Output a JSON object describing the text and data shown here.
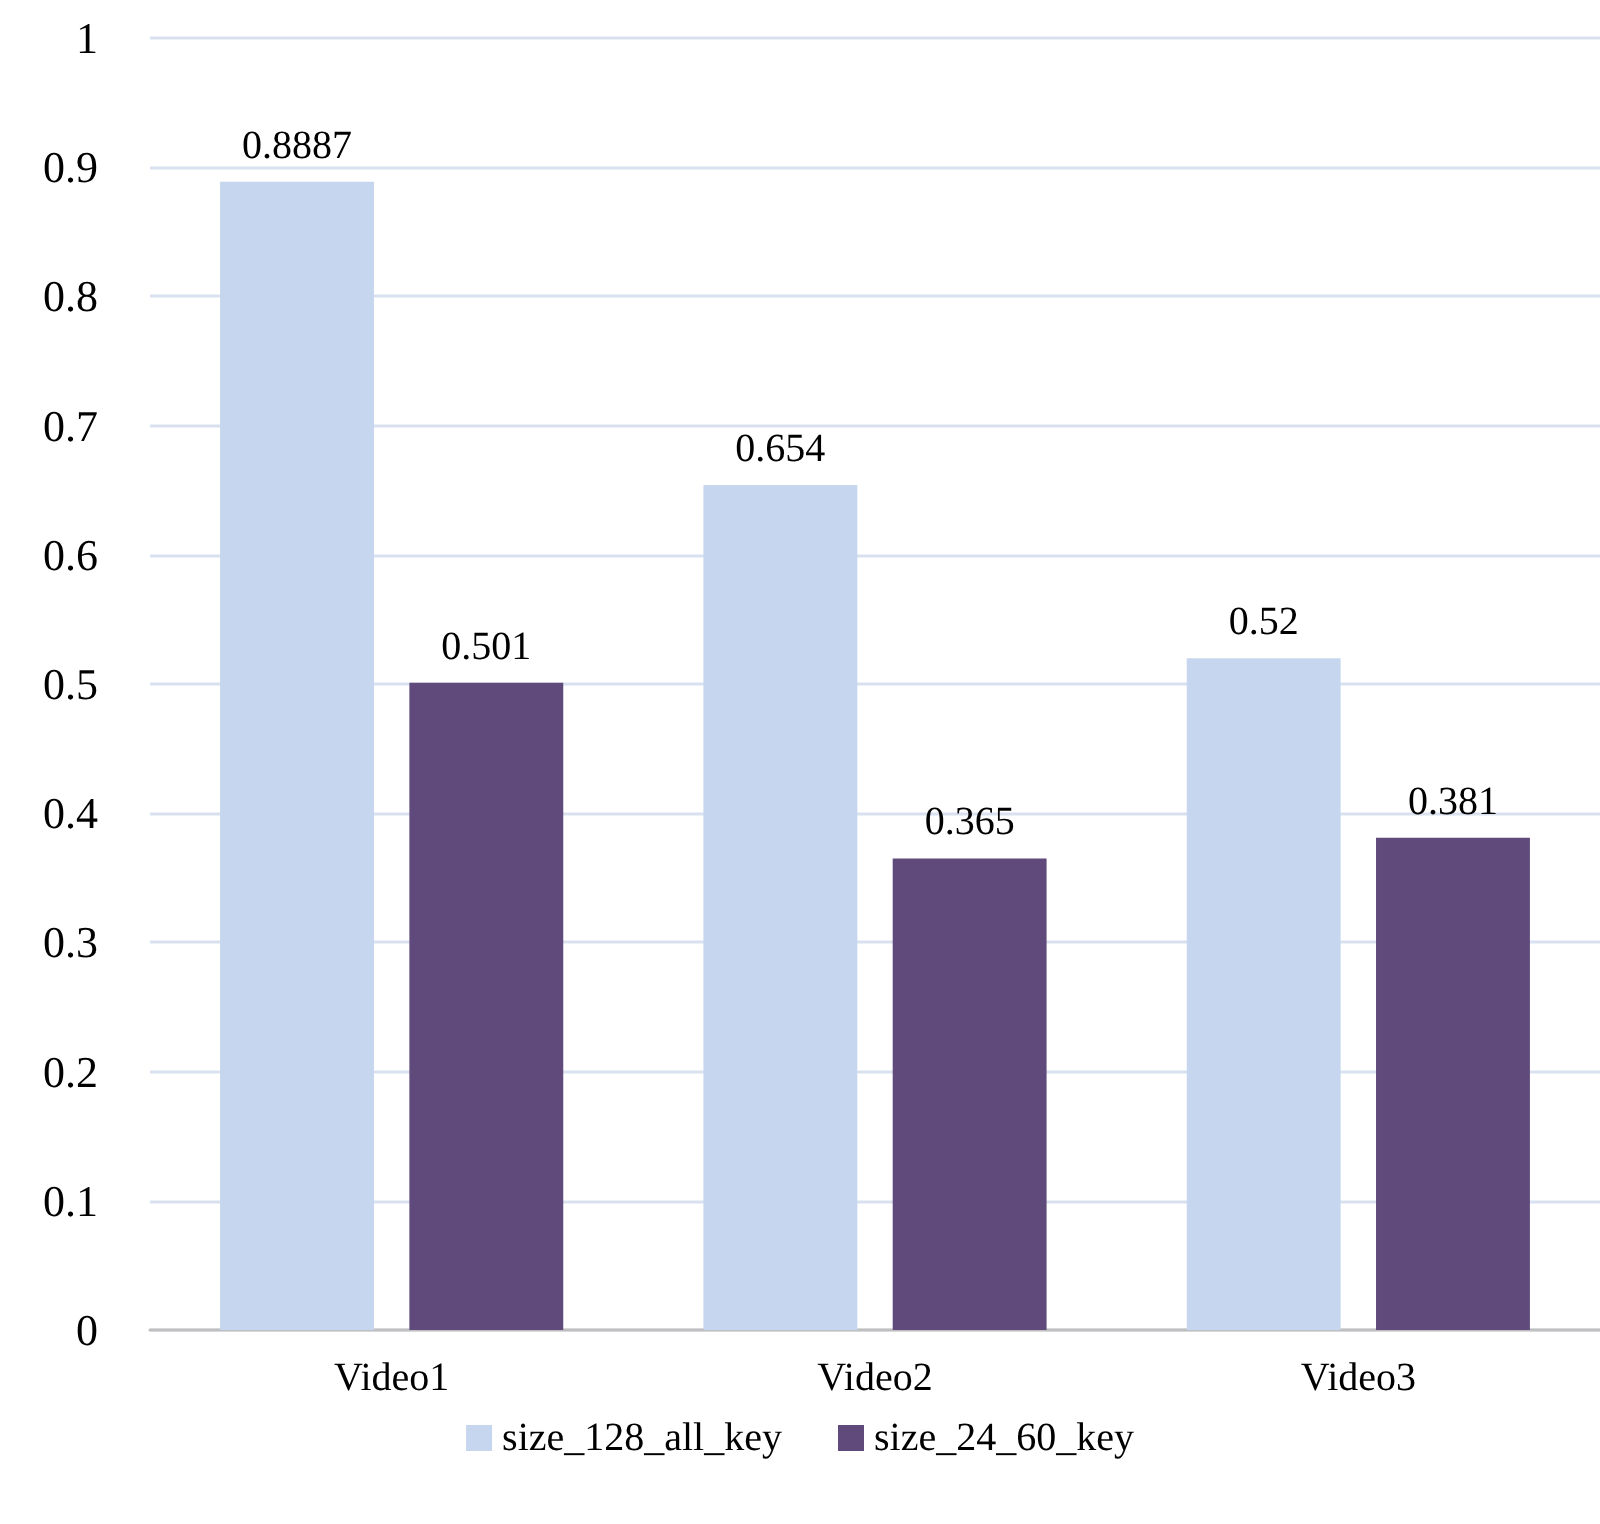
{
  "chart_data": {
    "type": "bar",
    "categories": [
      "Video1",
      "Video2",
      "Video3"
    ],
    "series": [
      {
        "name": "size_128_all_key",
        "color": "#c6d6ef",
        "values": [
          0.8887,
          0.654,
          0.52
        ]
      },
      {
        "name": "size_24_60_key",
        "color": "#604a7b",
        "values": [
          0.501,
          0.365,
          0.381
        ]
      }
    ],
    "ylim": [
      0,
      1
    ],
    "yticks": [
      0,
      0.1,
      0.2,
      0.3,
      0.4,
      0.5,
      0.6,
      0.7,
      0.8,
      0.9,
      1
    ],
    "grid": "y",
    "legend": "bottom",
    "data_labels": true
  }
}
